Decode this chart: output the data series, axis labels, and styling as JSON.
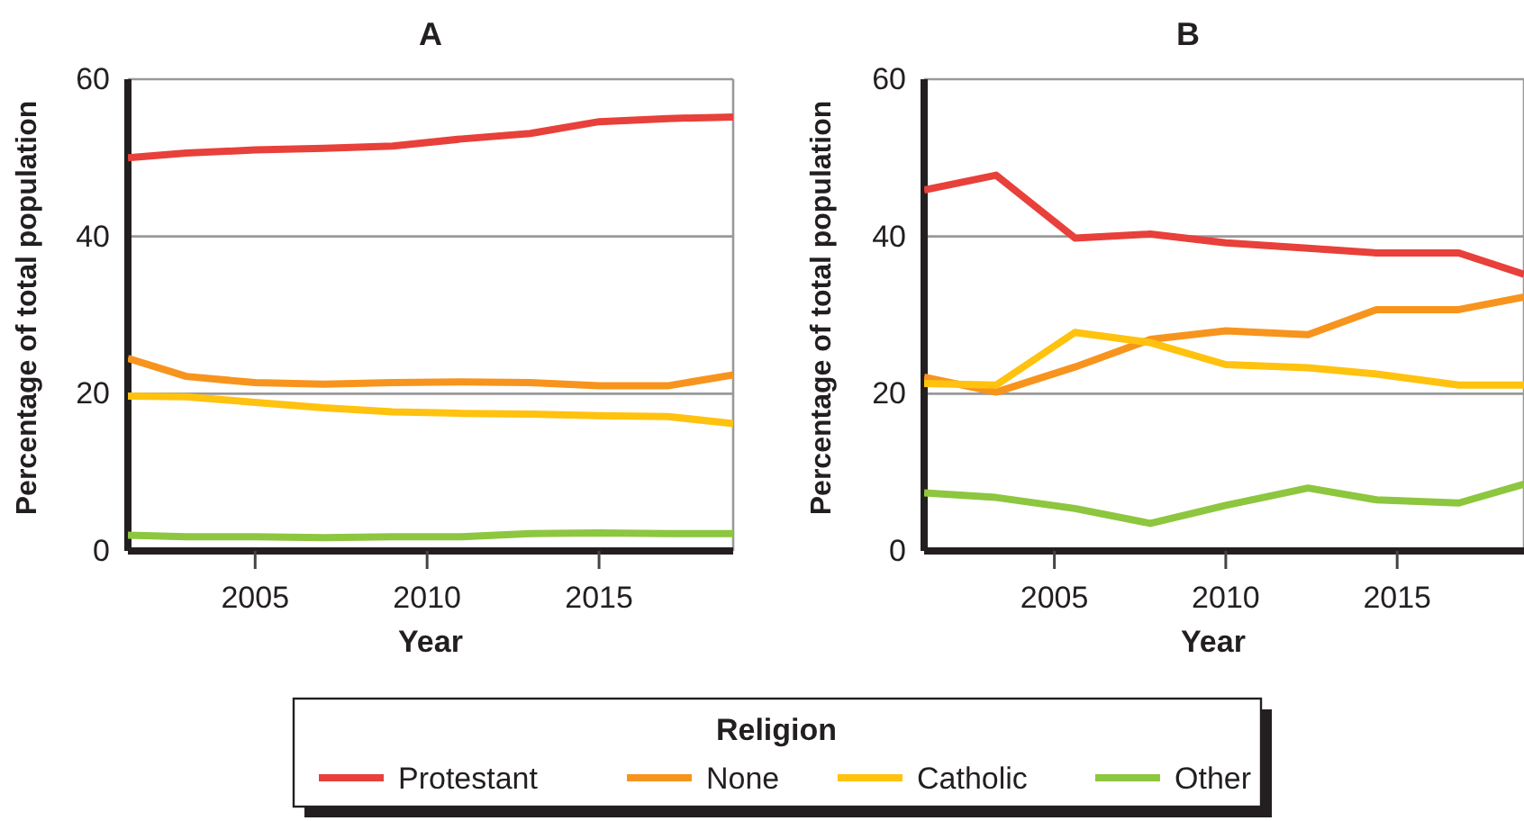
{
  "chart_data": [
    {
      "type": "line",
      "title": "A",
      "xlabel": "Year",
      "ylabel": "Percentage of total population",
      "legend_title": "Religion",
      "legend": "bottom",
      "grid": "y",
      "marker": "none",
      "line_style": "solid",
      "x": [
        2001.3,
        2003,
        2005,
        2007,
        2009,
        2011,
        2013,
        2015,
        2017,
        2018.9
      ],
      "xlim": [
        2001.3,
        2018.9
      ],
      "xticks": [
        2005,
        2010,
        2015
      ],
      "ylim": [
        0,
        60
      ],
      "yticks": [
        0,
        20,
        40,
        60
      ],
      "series": [
        {
          "name": "Protestant",
          "color": "#e8403a",
          "values": [
            50.0,
            50.6,
            51.0,
            51.2,
            51.5,
            52.4,
            53.1,
            54.6,
            55.0,
            55.2
          ]
        },
        {
          "name": "None",
          "color": "#f7941d",
          "values": [
            24.5,
            22.2,
            21.4,
            21.2,
            21.4,
            21.5,
            21.4,
            21.0,
            21.0,
            22.4
          ]
        },
        {
          "name": "Catholic",
          "color": "#ffc20e",
          "values": [
            19.7,
            19.6,
            18.9,
            18.2,
            17.7,
            17.5,
            17.4,
            17.2,
            17.1,
            16.2
          ]
        },
        {
          "name": "Other",
          "color": "#8dc63f",
          "values": [
            2.0,
            1.8,
            1.8,
            1.7,
            1.8,
            1.8,
            2.2,
            2.3,
            2.2,
            2.2
          ]
        }
      ]
    },
    {
      "type": "line",
      "title": "B",
      "xlabel": "Year",
      "ylabel": "Percentage of total population",
      "grid": "y",
      "marker": "none",
      "line_style": "solid",
      "x": [
        2001.2,
        2003.3,
        2005.6,
        2007.8,
        2010,
        2012.4,
        2014.4,
        2016.8,
        2018.7
      ],
      "xlim": [
        2001.2,
        2018.7
      ],
      "xticks": [
        2005,
        2010,
        2015
      ],
      "ylim": [
        0,
        60
      ],
      "yticks": [
        0,
        20,
        40,
        60
      ],
      "series": [
        {
          "name": "Protestant",
          "color": "#e8403a",
          "values": [
            45.9,
            47.8,
            39.8,
            40.3,
            39.2,
            38.5,
            37.9,
            37.9,
            35.2
          ]
        },
        {
          "name": "None",
          "color": "#f7941d",
          "values": [
            22.1,
            20.2,
            23.4,
            26.9,
            28.0,
            27.5,
            30.7,
            30.7,
            32.3
          ]
        },
        {
          "name": "Catholic",
          "color": "#ffc20e",
          "values": [
            21.3,
            21.1,
            27.8,
            26.5,
            23.7,
            23.3,
            22.5,
            21.1,
            21.1
          ]
        },
        {
          "name": "Other",
          "color": "#8dc63f",
          "values": [
            7.4,
            6.8,
            5.4,
            3.5,
            5.8,
            8.0,
            6.5,
            6.1,
            8.5
          ]
        }
      ]
    }
  ]
}
